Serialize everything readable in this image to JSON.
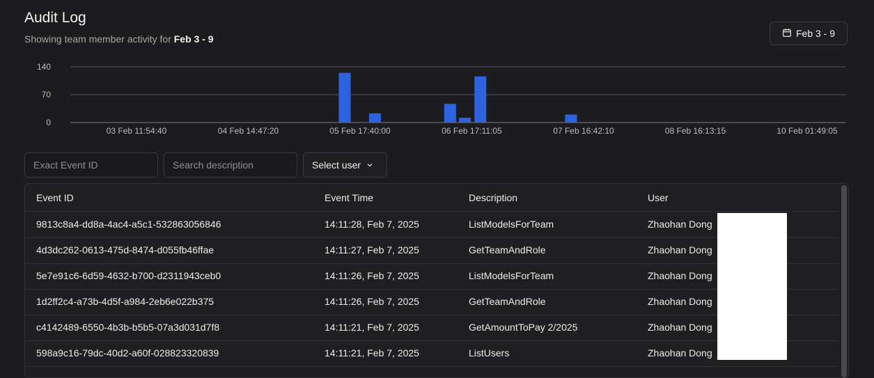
{
  "header": {
    "title": "Audit Log",
    "subtitle_prefix": "Showing team member activity for",
    "subtitle_range": "Feb 3 - 9",
    "date_button_label": "Feb 3 - 9",
    "date_button_icon": "calendar-icon"
  },
  "chart_data": {
    "type": "bar",
    "y_ticks": [
      0,
      70,
      140
    ],
    "ylim": [
      0,
      140
    ],
    "x_tick_labels": [
      "03 Feb 11:54:40",
      "04 Feb 14:47:20",
      "05 Feb 17:40:00",
      "06 Feb 17:11:05",
      "07 Feb 16:42:10",
      "08 Feb 16:13:15",
      "10 Feb 01:49:05"
    ],
    "grid": true,
    "bar_color": "#2b63e0",
    "bars": [
      {
        "x_frac": 0.354,
        "value": 125
      },
      {
        "x_frac": 0.393,
        "value": 23
      },
      {
        "x_frac": 0.49,
        "value": 47
      },
      {
        "x_frac": 0.509,
        "value": 12
      },
      {
        "x_frac": 0.529,
        "value": 116
      },
      {
        "x_frac": 0.646,
        "value": 20
      }
    ]
  },
  "filters": {
    "event_id_placeholder": "Exact Event ID",
    "description_placeholder": "Search description",
    "user_select_label": "Select user",
    "user_select_icon": "chevron-down-icon"
  },
  "table": {
    "headers": [
      "Event ID",
      "Event Time",
      "Description",
      "User"
    ],
    "rows": [
      {
        "id": "9813c8a4-dd8a-4ac4-a5c1-532863056846",
        "time": "14:11:28, Feb 7, 2025",
        "desc": "ListModelsForTeam",
        "user": "Zhaohan Dong"
      },
      {
        "id": "4d3dc262-0613-475d-8474-d055fb46ffae",
        "time": "14:11:27, Feb 7, 2025",
        "desc": "GetTeamAndRole",
        "user": "Zhaohan Dong"
      },
      {
        "id": "5e7e91c6-6d59-4632-b700-d2311943ceb0",
        "time": "14:11:26, Feb 7, 2025",
        "desc": "ListModelsForTeam",
        "user": "Zhaohan Dong"
      },
      {
        "id": "1d2ff2c4-a73b-4d5f-a984-2eb6e022b375",
        "time": "14:11:26, Feb 7, 2025",
        "desc": "GetTeamAndRole",
        "user": "Zhaohan Dong"
      },
      {
        "id": "c4142489-6550-4b3b-b5b5-07a3d031d7f8",
        "time": "14:11:21, Feb 7, 2025",
        "desc": "GetAmountToPay 2/2025",
        "user": "Zhaohan Dong"
      },
      {
        "id": "598a9c16-79dc-40d2-a60f-028823320839",
        "time": "14:11:21, Feb 7, 2025",
        "desc": "ListUsers",
        "user": "Zhaohan Dong"
      }
    ]
  }
}
